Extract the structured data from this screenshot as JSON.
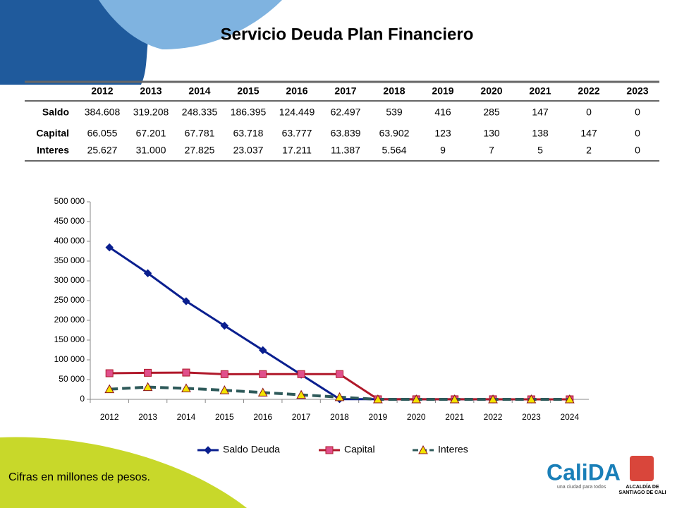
{
  "title": "Servicio Deuda Plan Financiero",
  "table": {
    "header": [
      "2012",
      "2013",
      "2014",
      "2015",
      "2016",
      "2017",
      "2018",
      "2019",
      "2020",
      "2021",
      "2022",
      "2023"
    ],
    "rows": [
      {
        "label": "Saldo",
        "values": [
          "384.608",
          "319.208",
          "248.335",
          "186.395",
          "124.449",
          "62.497",
          "539",
          "416",
          "285",
          "147",
          "0",
          "0"
        ]
      },
      {
        "label": "Capital",
        "values": [
          "66.055",
          "67.201",
          "67.781",
          "63.718",
          "63.777",
          "63.839",
          "63.902",
          "123",
          "130",
          "138",
          "147",
          "0"
        ]
      },
      {
        "label": "Interes",
        "values": [
          "25.627",
          "31.000",
          "27.825",
          "23.037",
          "17.211",
          "11.387",
          "5.564",
          "9",
          "7",
          "5",
          "2",
          "0"
        ]
      }
    ]
  },
  "chart_data": {
    "type": "line",
    "categories": [
      "2012",
      "2013",
      "2014",
      "2015",
      "2016",
      "2017",
      "2018",
      "2019",
      "2020",
      "2021",
      "2022",
      "2023",
      "2024"
    ],
    "series": [
      {
        "name": "Saldo Deuda",
        "color": "#0a1f8f",
        "marker": "diamond",
        "marker_color": "#0a1f8f",
        "dash": false,
        "values": [
          384608,
          319208,
          248335,
          186395,
          124449,
          62497,
          539,
          416,
          285,
          147,
          0,
          0,
          0
        ]
      },
      {
        "name": "Capital",
        "color": "#b0182a",
        "marker": "square",
        "marker_color": "#e0508c",
        "dash": false,
        "values": [
          66055,
          67201,
          67781,
          63718,
          63777,
          63839,
          63902,
          123,
          130,
          138,
          147,
          0,
          0
        ]
      },
      {
        "name": "Interes",
        "color": "#2e5a5a",
        "marker": "triangle",
        "marker_color": "#f2e400",
        "dash": true,
        "values": [
          25627,
          31000,
          27825,
          23037,
          17211,
          11387,
          5564,
          9,
          7,
          5,
          2,
          0,
          0
        ]
      }
    ],
    "ylim": [
      0,
      500000
    ],
    "yticks": [
      {
        "value": 0,
        "label": "0"
      },
      {
        "value": 50000,
        "label": "50 000"
      },
      {
        "value": 100000,
        "label": "100 000"
      },
      {
        "value": 150000,
        "label": "150 000"
      },
      {
        "value": 200000,
        "label": "200 000"
      },
      {
        "value": 250000,
        "label": "250 000"
      },
      {
        "value": 300000,
        "label": "300 000"
      },
      {
        "value": 350000,
        "label": "350 000"
      },
      {
        "value": 400000,
        "label": "400 000"
      },
      {
        "value": 450000,
        "label": "450 000"
      },
      {
        "value": 500000,
        "label": "500 000"
      }
    ],
    "legend": "bottom"
  },
  "footnote": "Cifras en millones de pesos.",
  "logos": {
    "brand": "CaliDA",
    "slogan": "una ciudad para todos",
    "city_1": "ALCALDÍA DE",
    "city_2": "SANTIAGO DE CALI"
  }
}
